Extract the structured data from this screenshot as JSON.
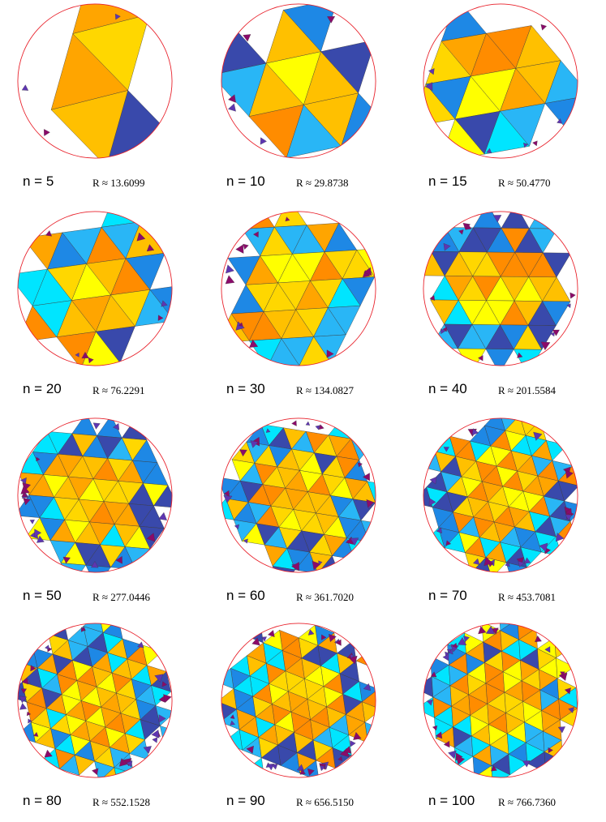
{
  "panels": [
    {
      "n_label": "n = 5",
      "r_label": "R ≈ 13.6099",
      "n": 5
    },
    {
      "n_label": "n = 10",
      "r_label": "R ≈ 29.8738",
      "n": 10
    },
    {
      "n_label": "n = 15",
      "r_label": "R ≈ 50.4770",
      "n": 15
    },
    {
      "n_label": "n = 20",
      "r_label": "R ≈ 76.2291",
      "n": 20
    },
    {
      "n_label": "n = 30",
      "r_label": "R ≈ 134.0827",
      "n": 30
    },
    {
      "n_label": "n = 40",
      "r_label": "R ≈ 201.5584",
      "n": 40
    },
    {
      "n_label": "n = 50",
      "r_label": "R ≈ 277.0446",
      "n": 50
    },
    {
      "n_label": "n = 60",
      "r_label": "R ≈ 361.7020",
      "n": 60
    },
    {
      "n_label": "n = 70",
      "r_label": "R ≈ 453.7081",
      "n": 70
    },
    {
      "n_label": "n = 80",
      "r_label": "R ≈ 552.1528",
      "n": 80
    },
    {
      "n_label": "n = 90",
      "r_label": "R ≈ 656.5150",
      "n": 90
    },
    {
      "n_label": "n = 100",
      "r_label": "R ≈ 766.7360",
      "n": 100
    }
  ],
  "colors": {
    "circle": "#e8202a",
    "palette": [
      "#ffff00",
      "#ffd700",
      "#ffc000",
      "#ffa500",
      "#ff8c00",
      "#00e5ff",
      "#29b6f6",
      "#1e88e5",
      "#3949ab",
      "#5e35b1",
      "#8b0a6a"
    ]
  }
}
